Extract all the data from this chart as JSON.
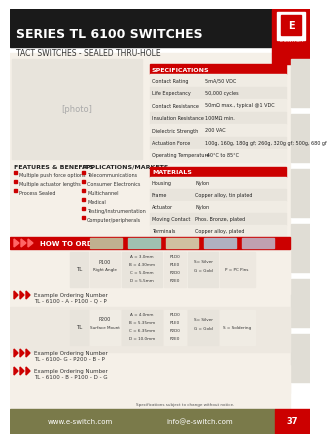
{
  "title": "SERIES TL 6100 SWITCHES",
  "subtitle": "TACT SWITCHES - SEALED THRU-HOLE",
  "bg_color": "#f5f0e8",
  "header_bg": "#1a1a1a",
  "red_color": "#cc0000",
  "olive_color": "#7a7a4a",
  "specs_title": "SPECIFICATIONS",
  "specs": [
    [
      "Contact Rating",
      "5mA/50 VDC"
    ],
    [
      "Life Expectancy",
      "50,000 cycles"
    ],
    [
      "Contact Resistance",
      "50mΩ max., typical @1 VDC"
    ],
    [
      "Insulation Resistance",
      "100MΩ min."
    ],
    [
      "Dielectric Strength",
      "200 VAC"
    ],
    [
      "Actuation Force",
      "100g, 160g, 180g gf; 260g, 320g gf; 500g, 680 gf"
    ],
    [
      "Operating Temperature",
      "-40°C to 85°C"
    ]
  ],
  "materials_title": "MATERIALS",
  "materials": [
    [
      "Housing",
      "Nylon"
    ],
    [
      "Frame",
      "Copper alloy, tin plated"
    ],
    [
      "Actuator",
      "Nylon"
    ],
    [
      "Moving Contact",
      "Phos. Bronze, plated"
    ],
    [
      "Terminals",
      "Copper alloy, plated"
    ]
  ],
  "features_title": "FEATURES & BENEFITS",
  "features": [
    "Multiple push force options",
    "Multiple actuator lengths",
    "Process Sealed"
  ],
  "apps_title": "APPLICATIONS/MARKETS",
  "apps": [
    "Telecommunications",
    "Consumer Electronics",
    "Multichannel",
    "Medical",
    "Testing/Instrumentation",
    "Computer/peripherals"
  ],
  "how_to_order": "HOW TO ORDER",
  "example1_label": "Example Ordering Number",
  "example1": "TL - 6100 - A - P100 - Q - P",
  "example2_label": "Example Ordering Number",
  "example2": "TL - 6100- G - P200 - B - P",
  "example3_label": "Example Ordering Number",
  "example3": "TL - 6100 - B - P100 - D - G",
  "footer_web": "www.e-switch.com",
  "footer_email": "info@e-switch.com",
  "footer_page": "37",
  "spec_note": "Specifications subject to change without notice.",
  "order_table1": {
    "col1": "TL",
    "col2_head": "P100",
    "col2_sub": "Right Angle",
    "col3_items": [
      "A = 3.0mm",
      "B = 4.30mm",
      "C = 5.0mm",
      "D = 5.5mm"
    ],
    "col4_items": [
      "P1D0",
      "P1E0",
      "P2D0",
      "P2E0"
    ],
    "col5_items": [
      "S= Silver",
      "G = Gold"
    ],
    "col6_items": [
      "P = PC Pins"
    ]
  },
  "order_table2": {
    "col1": "TL",
    "col2_head": "P200",
    "col2_sub": "Surface Mount",
    "col3_items": [
      "A = 4.0mm",
      "B = 5.35mm",
      "C = 6.35mm",
      "D = 10.0mm"
    ],
    "col4_items": [
      "P1D0",
      "P1E0",
      "P2D0",
      "P2E0"
    ],
    "col5_items": [
      "S= Silver",
      "G = Gold"
    ],
    "col6_items": [
      "S = Soldering"
    ]
  }
}
